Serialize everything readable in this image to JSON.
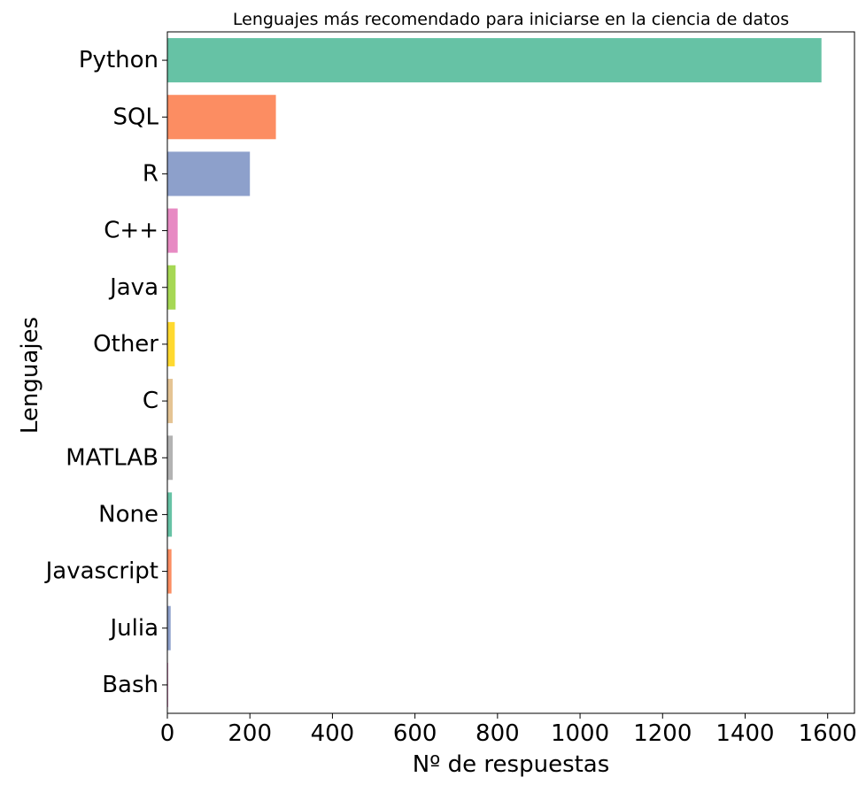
{
  "chart_data": {
    "type": "bar",
    "orientation": "horizontal",
    "title": "Lenguajes más recomendado para iniciarse en la ciencia de datos",
    "xlabel": "Nº de respuestas",
    "ylabel": "Lenguajes",
    "xlim": [
      0,
      1665
    ],
    "xticks": [
      0,
      200,
      400,
      600,
      800,
      1000,
      1200,
      1400,
      1600
    ],
    "grid": false,
    "categories": [
      "Python",
      "SQL",
      "R",
      "C++",
      "Java",
      "Other",
      "C",
      "MATLAB",
      "None",
      "Javascript",
      "Julia",
      "Bash"
    ],
    "values": [
      1585,
      263,
      200,
      25,
      20,
      18,
      13,
      13,
      11,
      10,
      8,
      2
    ],
    "colors": [
      "#66c2a5",
      "#fc8d62",
      "#8da0cb",
      "#e78ac3",
      "#a6d854",
      "#ffd92f",
      "#e5c494",
      "#b3b3b3",
      "#66c2a5",
      "#fc8d62",
      "#8da0cb",
      "#e78ac3"
    ]
  }
}
